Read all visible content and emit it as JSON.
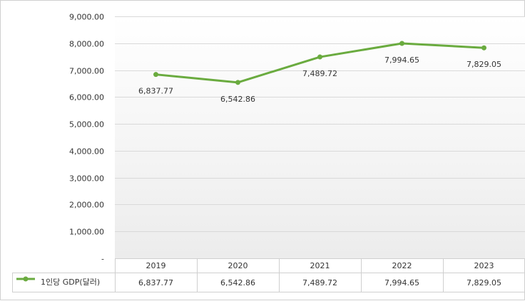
{
  "chart_data": {
    "type": "line",
    "categories": [
      "2019",
      "2020",
      "2021",
      "2022",
      "2023"
    ],
    "series": [
      {
        "name": "1인당 GDP(달러)",
        "values": [
          6837.77,
          6542.86,
          7489.72,
          7994.65,
          7829.05
        ],
        "labels": [
          "6,837.77",
          "6,542.86",
          "7,489.72",
          "7,994.65",
          "7,829.05"
        ],
        "color": "#6aab3f"
      }
    ],
    "ylim": [
      0,
      9000
    ],
    "yticks": [
      {
        "value": 0,
        "label": "-"
      },
      {
        "value": 1000,
        "label": "1,000.00"
      },
      {
        "value": 2000,
        "label": "2,000.00"
      },
      {
        "value": 3000,
        "label": "3,000.00"
      },
      {
        "value": 4000,
        "label": "4,000.00"
      },
      {
        "value": 5000,
        "label": "5,000.00"
      },
      {
        "value": 6000,
        "label": "6,000.00"
      },
      {
        "value": 7000,
        "label": "7,000.00"
      },
      {
        "value": 8000,
        "label": "8,000.00"
      },
      {
        "value": 9000,
        "label": "9,000.00"
      }
    ],
    "grid": true,
    "legend": "data-table"
  }
}
